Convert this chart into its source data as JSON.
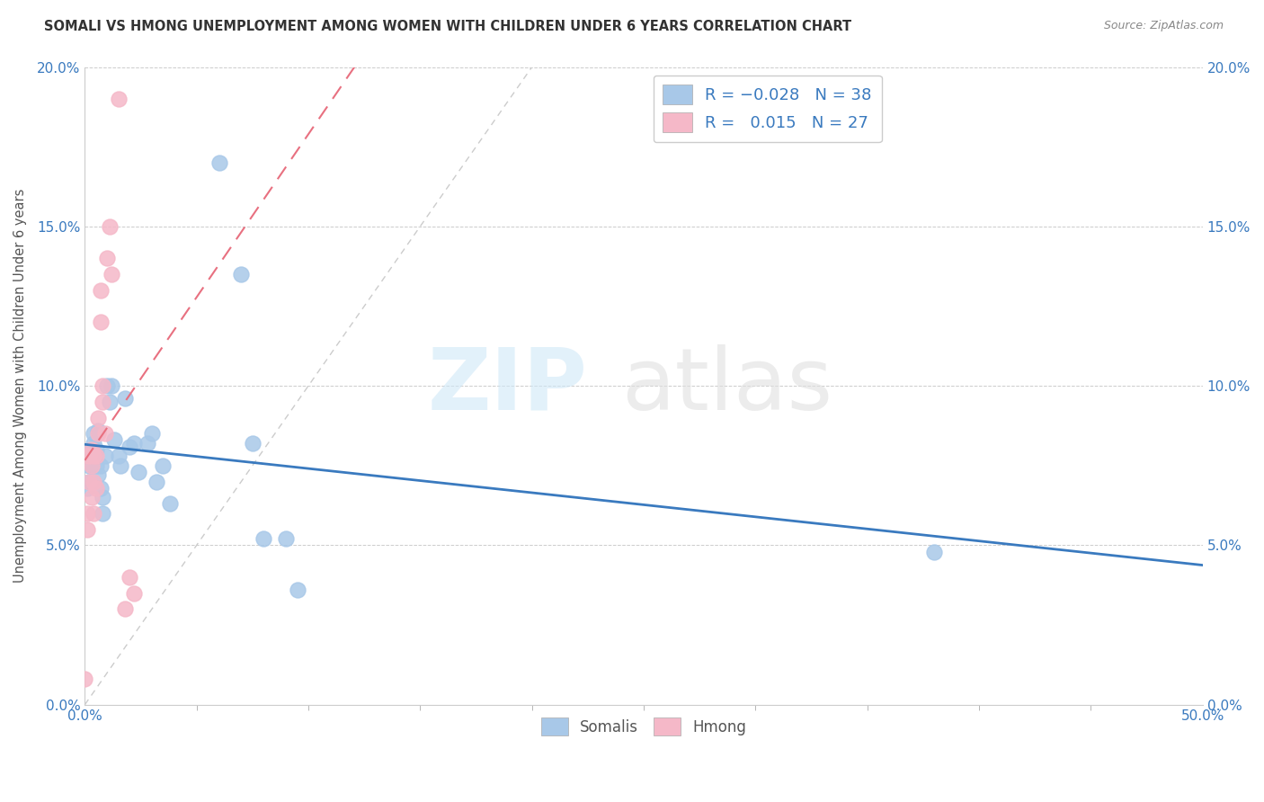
{
  "title": "SOMALI VS HMONG UNEMPLOYMENT AMONG WOMEN WITH CHILDREN UNDER 6 YEARS CORRELATION CHART",
  "source": "Source: ZipAtlas.com",
  "ylabel": "Unemployment Among Women with Children Under 6 years",
  "xlim": [
    0.0,
    0.5
  ],
  "ylim": [
    0.0,
    0.2
  ],
  "somali_R": -0.028,
  "somali_N": 38,
  "hmong_R": 0.015,
  "hmong_N": 27,
  "somali_color": "#a8c8e8",
  "hmong_color": "#f5b8c8",
  "somali_line_color": "#3a7abf",
  "hmong_line_color": "#e87080",
  "somali_x": [
    0.001,
    0.002,
    0.002,
    0.003,
    0.003,
    0.004,
    0.004,
    0.005,
    0.005,
    0.006,
    0.006,
    0.007,
    0.007,
    0.008,
    0.008,
    0.009,
    0.01,
    0.011,
    0.012,
    0.013,
    0.015,
    0.016,
    0.018,
    0.02,
    0.022,
    0.024,
    0.028,
    0.03,
    0.032,
    0.035,
    0.038,
    0.06,
    0.07,
    0.075,
    0.08,
    0.09,
    0.095,
    0.38
  ],
  "somali_y": [
    0.068,
    0.075,
    0.07,
    0.08,
    0.075,
    0.082,
    0.085,
    0.075,
    0.08,
    0.086,
    0.072,
    0.075,
    0.068,
    0.065,
    0.06,
    0.078,
    0.1,
    0.095,
    0.1,
    0.083,
    0.078,
    0.075,
    0.096,
    0.081,
    0.082,
    0.073,
    0.082,
    0.085,
    0.07,
    0.075,
    0.063,
    0.17,
    0.135,
    0.082,
    0.052,
    0.052,
    0.036,
    0.048
  ],
  "hmong_x": [
    0.0,
    0.001,
    0.001,
    0.002,
    0.002,
    0.003,
    0.003,
    0.003,
    0.004,
    0.004,
    0.004,
    0.005,
    0.005,
    0.006,
    0.006,
    0.007,
    0.007,
    0.008,
    0.008,
    0.009,
    0.01,
    0.011,
    0.012,
    0.015,
    0.018,
    0.02,
    0.022
  ],
  "hmong_y": [
    0.008,
    0.06,
    0.055,
    0.078,
    0.07,
    0.08,
    0.075,
    0.065,
    0.078,
    0.07,
    0.06,
    0.078,
    0.068,
    0.09,
    0.085,
    0.13,
    0.12,
    0.1,
    0.095,
    0.085,
    0.14,
    0.15,
    0.135,
    0.19,
    0.03,
    0.04,
    0.035
  ],
  "minor_xticks": [
    0.05,
    0.1,
    0.15,
    0.2,
    0.25,
    0.3,
    0.35,
    0.4,
    0.45
  ],
  "ref_line_color": "#cccccc"
}
